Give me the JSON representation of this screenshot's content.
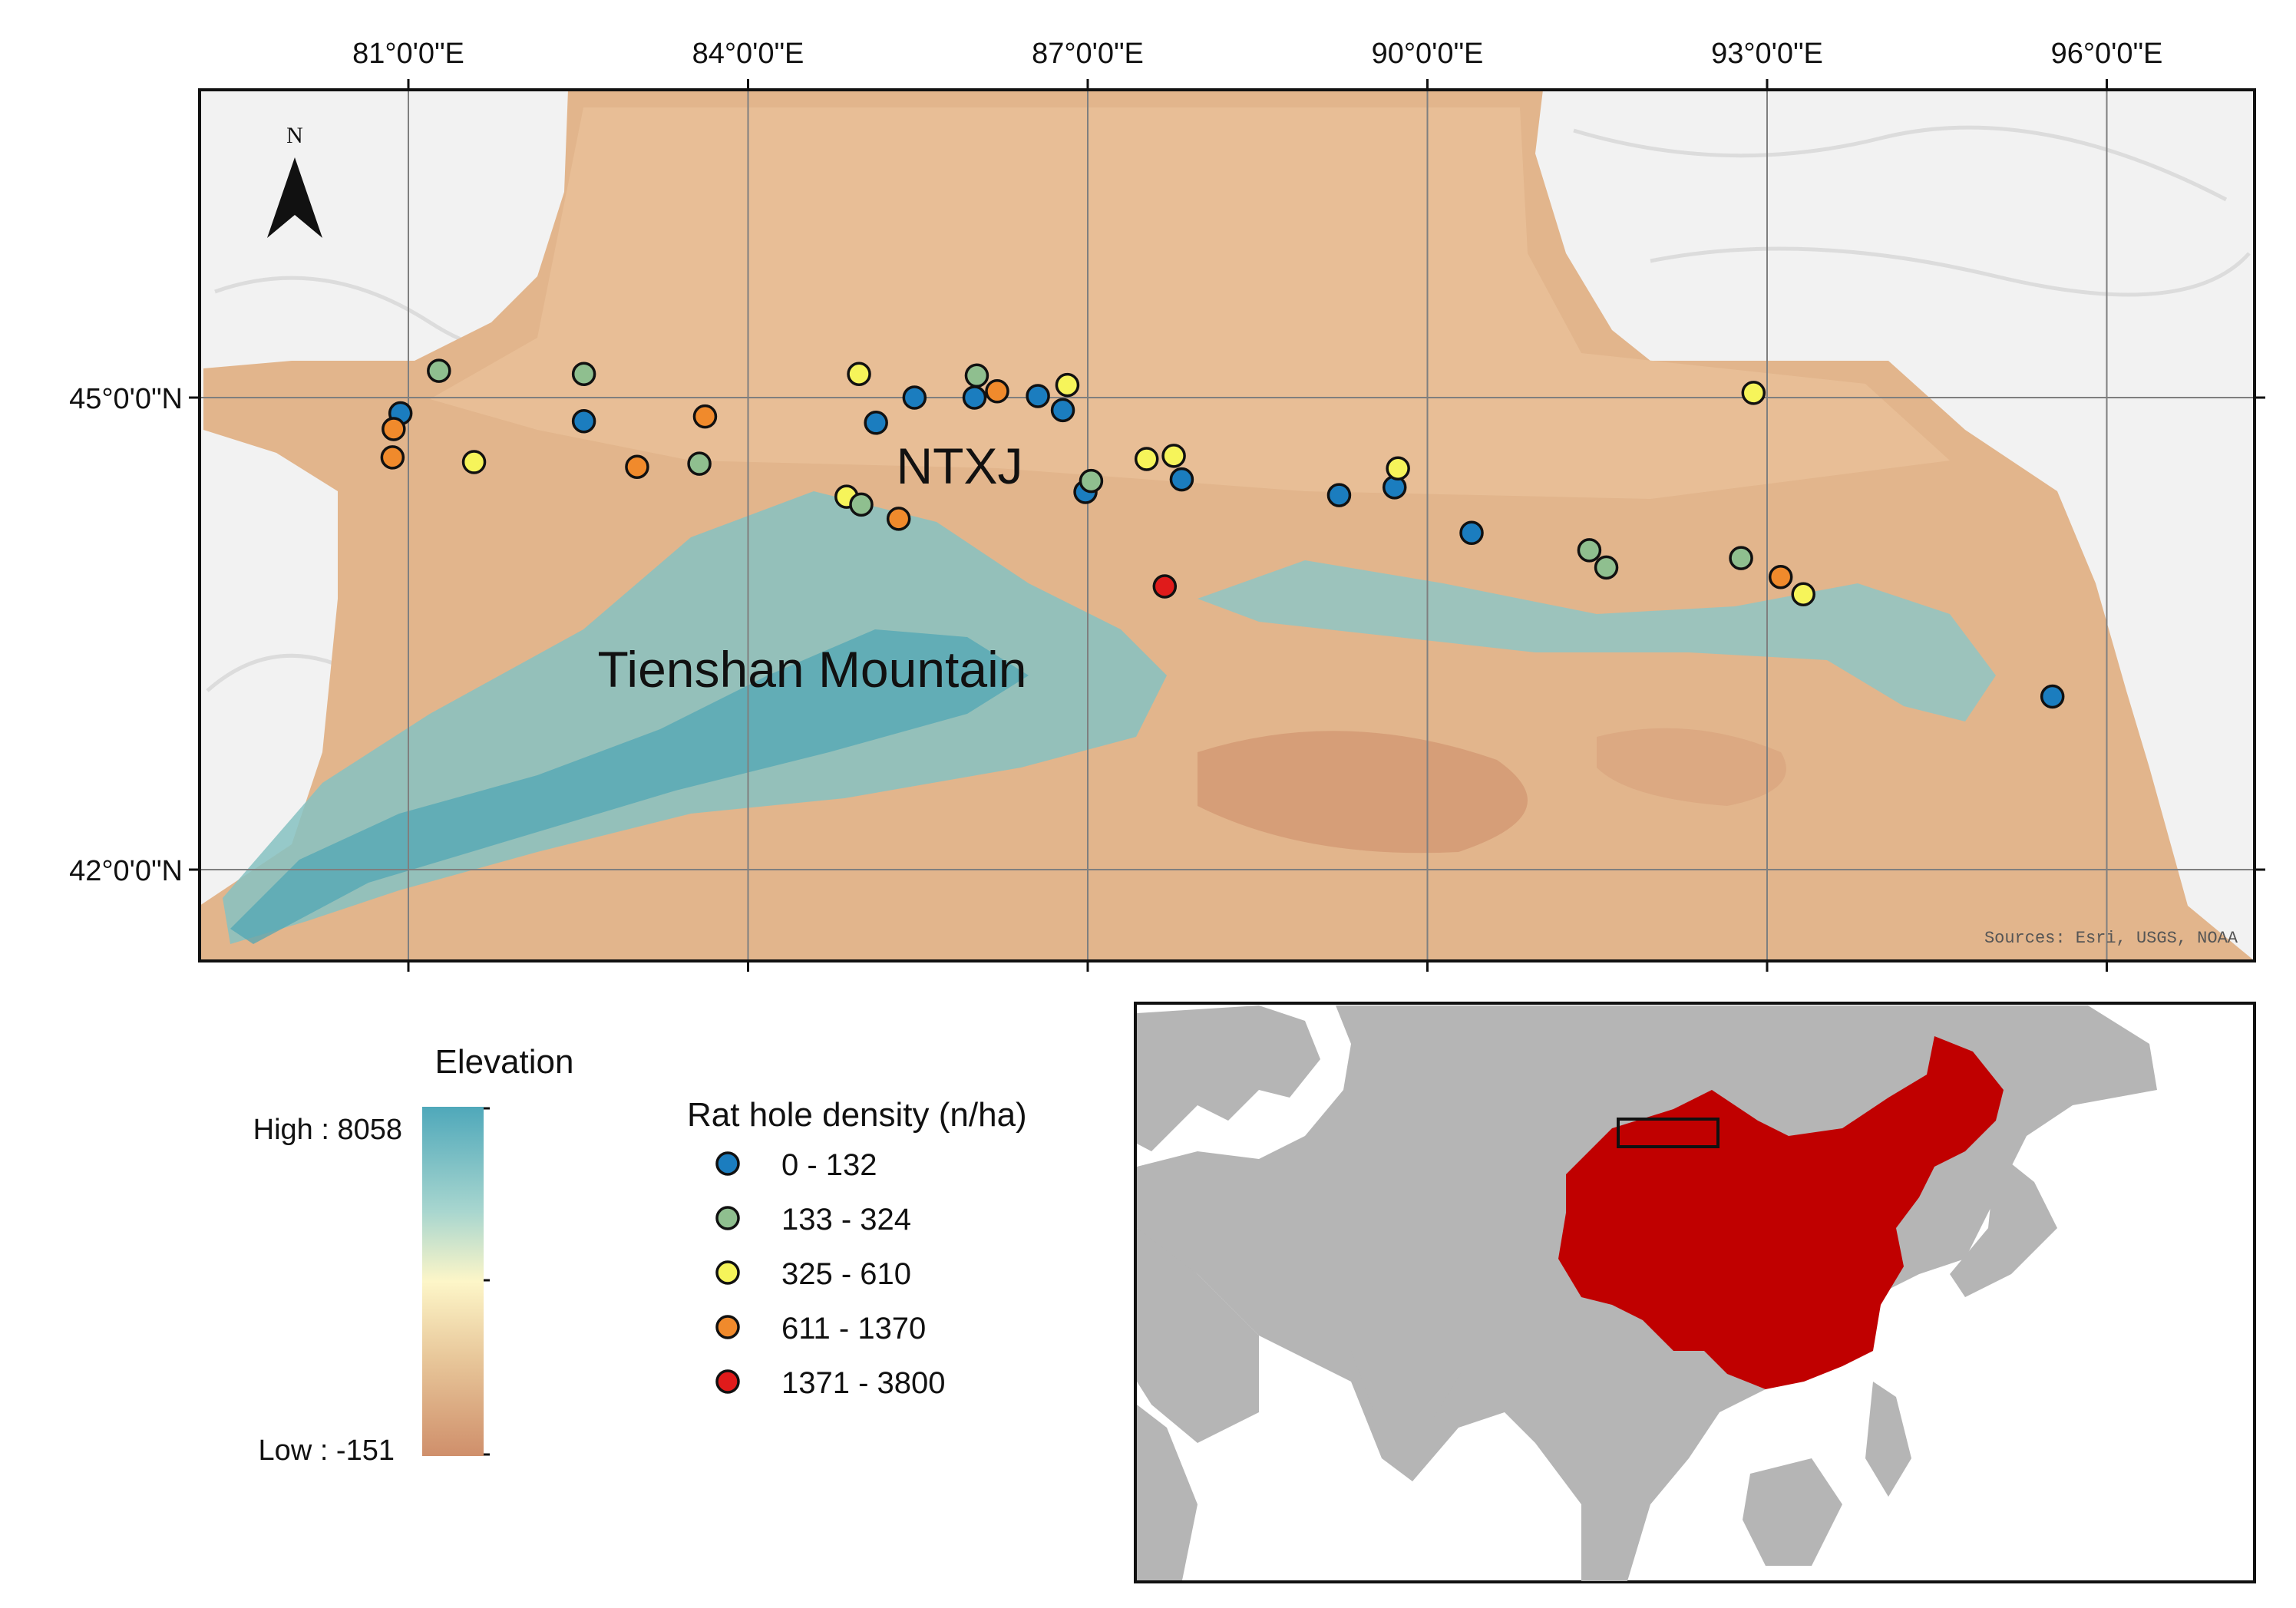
{
  "map": {
    "labels": {
      "basin": "NTXJ",
      "mountain": "Tienshan Mountain",
      "north": "N",
      "sources": "Sources: Esri, USGS, NOAA"
    },
    "lon_ticks": [
      {
        "lon": 81,
        "label": "81°0'0\"E"
      },
      {
        "lon": 84,
        "label": "84°0'0\"E"
      },
      {
        "lon": 87,
        "label": "87°0'0\"E"
      },
      {
        "lon": 90,
        "label": "90°0'0\"E"
      },
      {
        "lon": 93,
        "label": "93°0'0\"E"
      },
      {
        "lon": 96,
        "label": "96°0'0\"E"
      }
    ],
    "lat_ticks": [
      {
        "lat": 45,
        "label": "45°0'0\"N"
      },
      {
        "lat": 42,
        "label": "42°0'0\"N"
      }
    ],
    "density_classes": [
      {
        "label": "0 - 132",
        "color": "#1b7dbf"
      },
      {
        "label": "133 - 324",
        "color": "#8fbf8f"
      },
      {
        "label": "325 - 610",
        "color": "#f6f45a"
      },
      {
        "label": "611 - 1370",
        "color": "#f08a2c"
      },
      {
        "label": "1371 - 3800",
        "color": "#e01b1b"
      }
    ],
    "sites": [
      {
        "lon": 80.93,
        "lat": 44.9,
        "class": 0
      },
      {
        "lon": 80.87,
        "lat": 44.8,
        "class": 3
      },
      {
        "lon": 80.86,
        "lat": 44.62,
        "class": 3
      },
      {
        "lon": 81.27,
        "lat": 45.17,
        "class": 1
      },
      {
        "lon": 81.58,
        "lat": 44.59,
        "class": 2
      },
      {
        "lon": 82.55,
        "lat": 45.15,
        "class": 1
      },
      {
        "lon": 82.55,
        "lat": 44.85,
        "class": 0
      },
      {
        "lon": 83.02,
        "lat": 44.56,
        "class": 3
      },
      {
        "lon": 83.57,
        "lat": 44.58,
        "class": 1
      },
      {
        "lon": 83.62,
        "lat": 44.88,
        "class": 3
      },
      {
        "lon": 84.87,
        "lat": 44.37,
        "class": 2
      },
      {
        "lon": 84.98,
        "lat": 45.15,
        "class": 2
      },
      {
        "lon": 85.0,
        "lat": 44.32,
        "class": 1
      },
      {
        "lon": 85.13,
        "lat": 44.84,
        "class": 0
      },
      {
        "lon": 85.33,
        "lat": 44.23,
        "class": 3
      },
      {
        "lon": 85.47,
        "lat": 45.0,
        "class": 0
      },
      {
        "lon": 86.0,
        "lat": 45.0,
        "class": 0
      },
      {
        "lon": 86.02,
        "lat": 45.14,
        "class": 1
      },
      {
        "lon": 86.2,
        "lat": 45.04,
        "class": 3
      },
      {
        "lon": 86.56,
        "lat": 45.01,
        "class": 0
      },
      {
        "lon": 86.78,
        "lat": 44.92,
        "class": 0
      },
      {
        "lon": 86.82,
        "lat": 45.08,
        "class": 2
      },
      {
        "lon": 86.98,
        "lat": 44.4,
        "class": 0
      },
      {
        "lon": 87.03,
        "lat": 44.47,
        "class": 1
      },
      {
        "lon": 87.52,
        "lat": 44.61,
        "class": 2
      },
      {
        "lon": 87.68,
        "lat": 43.8,
        "class": 4
      },
      {
        "lon": 87.76,
        "lat": 44.63,
        "class": 2
      },
      {
        "lon": 87.83,
        "lat": 44.48,
        "class": 0
      },
      {
        "lon": 89.22,
        "lat": 44.38,
        "class": 0
      },
      {
        "lon": 89.71,
        "lat": 44.43,
        "class": 0
      },
      {
        "lon": 89.74,
        "lat": 44.55,
        "class": 2
      },
      {
        "lon": 90.39,
        "lat": 44.14,
        "class": 0
      },
      {
        "lon": 91.43,
        "lat": 44.03,
        "class": 1
      },
      {
        "lon": 91.58,
        "lat": 43.92,
        "class": 1
      },
      {
        "lon": 92.77,
        "lat": 43.98,
        "class": 1
      },
      {
        "lon": 92.88,
        "lat": 45.03,
        "class": 2
      },
      {
        "lon": 93.12,
        "lat": 43.86,
        "class": 3
      },
      {
        "lon": 93.32,
        "lat": 43.75,
        "class": 2
      },
      {
        "lon": 95.52,
        "lat": 43.1,
        "class": 0
      }
    ]
  },
  "legend": {
    "elevation_title": "Elevation",
    "elevation_high": "High : 8058",
    "elevation_low": "Low : -151",
    "elevation_colors": [
      "#4fa8ba",
      "#a8d6cf",
      "#fdf6c8",
      "#e8c79a",
      "#cf8f6b"
    ],
    "density_title": "Rat hole density (n/ha)"
  },
  "inset": {
    "land_color": "#b5b5b5",
    "china_color": "#c00000"
  }
}
